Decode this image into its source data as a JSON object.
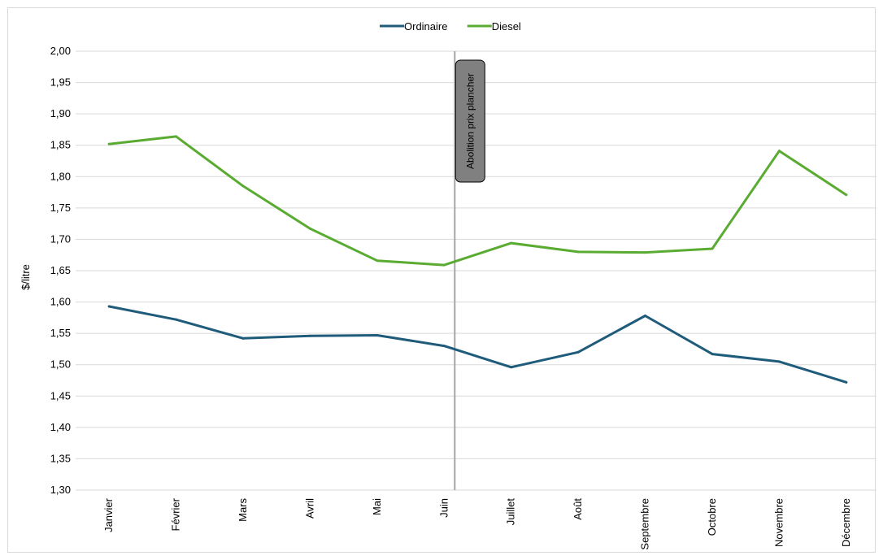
{
  "chart_data": {
    "type": "line",
    "ylabel": "$/litre",
    "ylim": [
      1.3,
      2.0
    ],
    "ytick_step": 0.05,
    "ytick_labels": [
      "1,30",
      "1,35",
      "1,40",
      "1,45",
      "1,50",
      "1,55",
      "1,60",
      "1,65",
      "1,70",
      "1,75",
      "1,80",
      "1,85",
      "1,90",
      "1,95",
      "2,00"
    ],
    "categories": [
      "Janvier",
      "Février",
      "Mars",
      "Avril",
      "Mai",
      "Juin",
      "Juillet",
      "Août",
      "Septembre",
      "Octobre",
      "Novembre",
      "Décembre"
    ],
    "grid": true,
    "legend_position": "top-center",
    "series": [
      {
        "name": "Ordinaire",
        "color": "#1f5b7a",
        "values": [
          1.593,
          1.572,
          1.542,
          1.546,
          1.547,
          1.53,
          1.496,
          1.52,
          1.578,
          1.517,
          1.505,
          1.472
        ]
      },
      {
        "name": "Diesel",
        "color": "#5aab32",
        "values": [
          1.852,
          1.864,
          1.785,
          1.717,
          1.666,
          1.659,
          1.694,
          1.68,
          1.679,
          1.685,
          1.841,
          1.771
        ]
      }
    ],
    "annotation": {
      "text": "Abolition prix plancher",
      "position_category_index": 5,
      "line_color": "#a6a6a6",
      "box_color": "#808080"
    }
  }
}
